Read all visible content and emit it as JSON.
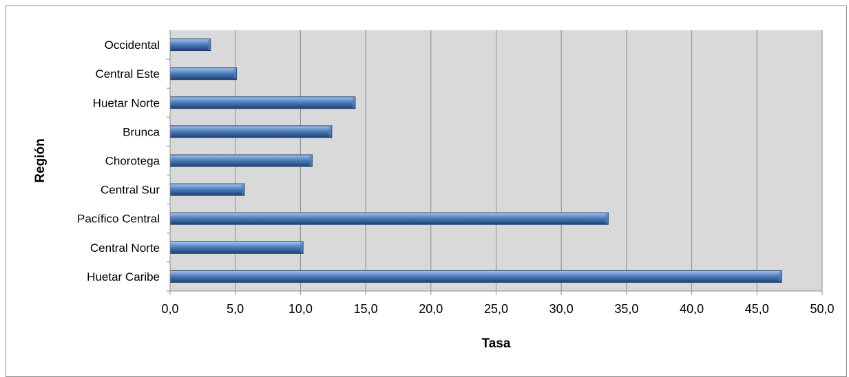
{
  "chart_data": {
    "type": "bar",
    "orientation": "horizontal",
    "categories": [
      "Huetar Caribe",
      "Central Norte",
      "Pacífico Central",
      "Central Sur",
      "Chorotega",
      "Brunca",
      "Huetar Norte",
      "Central Este",
      "Occidental"
    ],
    "values": [
      46.9,
      10.2,
      33.6,
      5.7,
      10.9,
      12.4,
      14.2,
      5.1,
      3.1
    ],
    "title": "",
    "xlabel": "Tasa",
    "ylabel": "Región",
    "xlim": [
      0,
      50
    ],
    "xticks": [
      0,
      5,
      10,
      15,
      20,
      25,
      30,
      35,
      40,
      45,
      50
    ],
    "xtick_labels": [
      "0,0",
      "5,0",
      "10,0",
      "15,0",
      "20,0",
      "25,0",
      "30,0",
      "35,0",
      "40,0",
      "45,0",
      "50,0"
    ],
    "grid": true,
    "legend": "none",
    "colors": {
      "bar_top": "#a9c4ec",
      "bar_mid": "#4f81bd",
      "bar_bottom": "#1f3f73",
      "plot_background": "#d9d9d9",
      "gridline": "#8c8c8c",
      "frame": "#8a8a8a"
    }
  }
}
